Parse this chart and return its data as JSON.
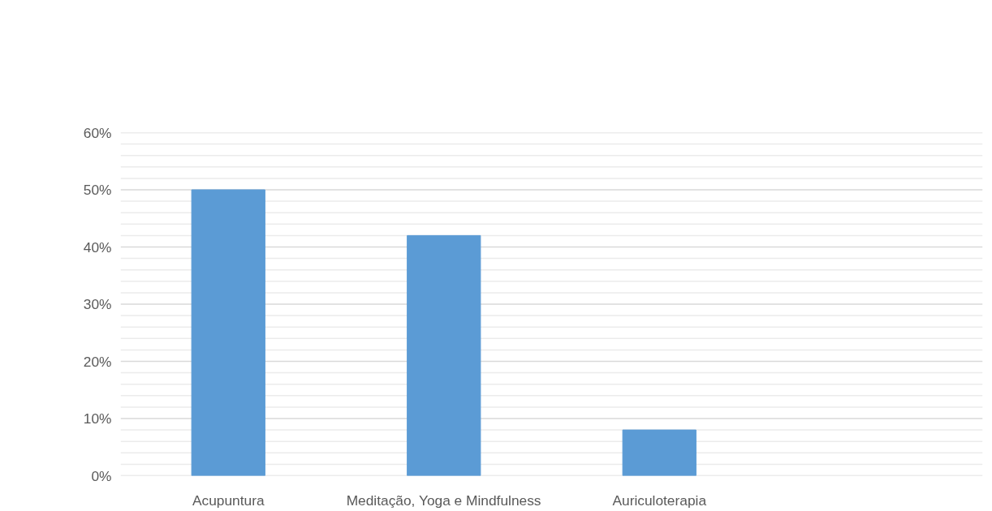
{
  "chart_data": {
    "type": "bar",
    "categories": [
      "Acupuntura",
      "Meditação, Yoga e Mindfulness",
      "Auriculoterapia",
      null
    ],
    "values": [
      50,
      42,
      8,
      null
    ],
    "color": "#5b9bd5",
    "ylim": [
      0,
      60
    ],
    "yticks": [
      {
        "value": 0,
        "label": "0%"
      },
      {
        "value": 2,
        "label": null
      },
      {
        "value": 4,
        "label": null
      },
      {
        "value": 6,
        "label": null
      },
      {
        "value": 8,
        "label": null
      },
      {
        "value": 10,
        "label": "10%"
      },
      {
        "value": 12,
        "label": null
      },
      {
        "value": 14,
        "label": null
      },
      {
        "value": 16,
        "label": null
      },
      {
        "value": 18,
        "label": null
      },
      {
        "value": 20,
        "label": "20%"
      },
      {
        "value": 22,
        "label": null
      },
      {
        "value": 24,
        "label": null
      },
      {
        "value": 26,
        "label": null
      },
      {
        "value": 28,
        "label": null
      },
      {
        "value": 30,
        "label": "30%"
      },
      {
        "value": 32,
        "label": null
      },
      {
        "value": 34,
        "label": null
      },
      {
        "value": 36,
        "label": null
      },
      {
        "value": 38,
        "label": null
      },
      {
        "value": 40,
        "label": "40%"
      },
      {
        "value": 42,
        "label": null
      },
      {
        "value": 44,
        "label": null
      },
      {
        "value": 46,
        "label": null
      },
      {
        "value": 48,
        "label": null
      },
      {
        "value": 50,
        "label": "50%"
      },
      {
        "value": 52,
        "label": null
      },
      {
        "value": 54,
        "label": null
      },
      {
        "value": 56,
        "label": null
      },
      {
        "value": 58,
        "label": null
      },
      {
        "value": 60,
        "label": "60%"
      }
    ],
    "grid": "y"
  }
}
